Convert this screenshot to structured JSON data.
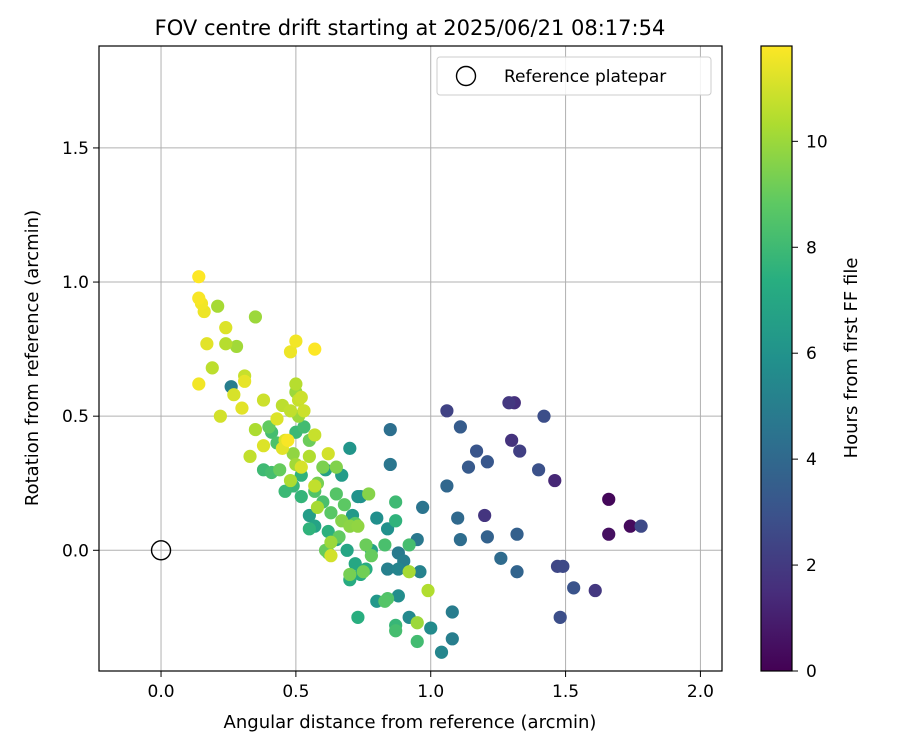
{
  "chart_data": {
    "type": "scatter",
    "title": "FOV centre drift starting at 2025/06/21 08:17:54",
    "xlabel": "Angular distance from reference (arcmin)",
    "ylabel": "Rotation from reference (arcmin)",
    "xlim": [
      -0.23,
      2.08
    ],
    "ylim": [
      -0.45,
      1.88
    ],
    "xticks": [
      0.0,
      0.5,
      1.0,
      1.5,
      2.0
    ],
    "xtick_labels": [
      "0.0",
      "0.5",
      "1.0",
      "1.5",
      "2.0"
    ],
    "yticks": [
      0.0,
      0.5,
      1.0,
      1.5
    ],
    "ytick_labels": [
      "0.0",
      "0.5",
      "1.0",
      "1.5"
    ],
    "grid": true,
    "legend": {
      "position": "top-right",
      "entries": [
        {
          "label": "Reference platepar",
          "marker": "open-circle"
        }
      ]
    },
    "reference_point": {
      "x": 0.0,
      "y": 0.0
    },
    "colorbar": {
      "label": "Hours from first FF file",
      "colormap": "viridis",
      "range": [
        0,
        11.8
      ],
      "ticks": [
        0,
        2,
        4,
        6,
        8,
        10
      ],
      "tick_labels": [
        "0",
        "2",
        "4",
        "6",
        "8",
        "10"
      ]
    },
    "points": [
      {
        "x": 1.66,
        "y": 0.19,
        "c": 0.2
      },
      {
        "x": 1.74,
        "y": 0.09,
        "c": 0.3
      },
      {
        "x": 1.66,
        "y": 0.06,
        "c": 0.5
      },
      {
        "x": 1.78,
        "y": 0.09,
        "c": 2.6
      },
      {
        "x": 1.46,
        "y": 0.26,
        "c": 1.3
      },
      {
        "x": 1.31,
        "y": 0.55,
        "c": 1.6
      },
      {
        "x": 1.29,
        "y": 0.55,
        "c": 1.9
      },
      {
        "x": 1.3,
        "y": 0.41,
        "c": 1.7
      },
      {
        "x": 1.33,
        "y": 0.37,
        "c": 2.2
      },
      {
        "x": 1.2,
        "y": 0.13,
        "c": 1.8
      },
      {
        "x": 1.61,
        "y": -0.15,
        "c": 1.9
      },
      {
        "x": 1.47,
        "y": -0.06,
        "c": 2.5
      },
      {
        "x": 1.49,
        "y": -0.06,
        "c": 2.6
      },
      {
        "x": 1.53,
        "y": -0.14,
        "c": 3.0
      },
      {
        "x": 1.48,
        "y": -0.25,
        "c": 2.8
      },
      {
        "x": 1.42,
        "y": 0.5,
        "c": 2.8
      },
      {
        "x": 1.4,
        "y": 0.3,
        "c": 2.9
      },
      {
        "x": 1.06,
        "y": 0.52,
        "c": 2.3
      },
      {
        "x": 1.17,
        "y": 0.37,
        "c": 3.1
      },
      {
        "x": 1.21,
        "y": 0.33,
        "c": 3.2
      },
      {
        "x": 1.14,
        "y": 0.31,
        "c": 3.3
      },
      {
        "x": 1.11,
        "y": 0.46,
        "c": 3.4
      },
      {
        "x": 1.32,
        "y": 0.06,
        "c": 3.6
      },
      {
        "x": 1.32,
        "y": -0.08,
        "c": 3.8
      },
      {
        "x": 1.26,
        "y": -0.03,
        "c": 4.1
      },
      {
        "x": 1.21,
        "y": 0.05,
        "c": 3.7
      },
      {
        "x": 1.06,
        "y": 0.24,
        "c": 3.9
      },
      {
        "x": 1.1,
        "y": 0.12,
        "c": 4.0
      },
      {
        "x": 1.11,
        "y": 0.04,
        "c": 4.2
      },
      {
        "x": 0.85,
        "y": 0.45,
        "c": 4.3
      },
      {
        "x": 0.85,
        "y": 0.32,
        "c": 4.6
      },
      {
        "x": 0.97,
        "y": 0.16,
        "c": 4.5
      },
      {
        "x": 0.95,
        "y": 0.04,
        "c": 4.7
      },
      {
        "x": 0.88,
        "y": -0.01,
        "c": 4.8
      },
      {
        "x": 0.9,
        "y": -0.04,
        "c": 5.0
      },
      {
        "x": 0.96,
        "y": -0.08,
        "c": 5.2
      },
      {
        "x": 0.84,
        "y": -0.07,
        "c": 5.1
      },
      {
        "x": 0.88,
        "y": -0.07,
        "c": 5.3
      },
      {
        "x": 1.08,
        "y": -0.23,
        "c": 4.9
      },
      {
        "x": 1.08,
        "y": -0.33,
        "c": 5.0
      },
      {
        "x": 1.04,
        "y": -0.38,
        "c": 5.4
      },
      {
        "x": 1.0,
        "y": -0.29,
        "c": 5.6
      },
      {
        "x": 0.92,
        "y": -0.25,
        "c": 5.5
      },
      {
        "x": 0.88,
        "y": -0.17,
        "c": 5.7
      },
      {
        "x": 0.8,
        "y": 0.12,
        "c": 5.8
      },
      {
        "x": 0.84,
        "y": 0.08,
        "c": 5.9
      },
      {
        "x": 0.8,
        "y": -0.19,
        "c": 6.2
      },
      {
        "x": 0.74,
        "y": 0.2,
        "c": 5.9
      },
      {
        "x": 0.7,
        "y": 0.38,
        "c": 6.1
      },
      {
        "x": 0.73,
        "y": 0.2,
        "c": 6.0
      },
      {
        "x": 0.71,
        "y": 0.13,
        "c": 6.3
      },
      {
        "x": 0.67,
        "y": 0.28,
        "c": 6.4
      },
      {
        "x": 0.61,
        "y": 0.3,
        "c": 6.6
      },
      {
        "x": 0.26,
        "y": 0.61,
        "c": 5.0
      },
      {
        "x": 0.55,
        "y": 0.13,
        "c": 6.5
      },
      {
        "x": 0.57,
        "y": 0.09,
        "c": 6.8
      },
      {
        "x": 0.65,
        "y": 0.04,
        "c": 6.7
      },
      {
        "x": 0.69,
        "y": 0.0,
        "c": 6.9
      },
      {
        "x": 0.72,
        "y": -0.05,
        "c": 7.0
      },
      {
        "x": 0.74,
        "y": -0.09,
        "c": 7.1
      },
      {
        "x": 0.7,
        "y": -0.11,
        "c": 7.2
      },
      {
        "x": 0.78,
        "y": 0.0,
        "c": 6.8
      },
      {
        "x": 0.76,
        "y": -0.07,
        "c": 7.3
      },
      {
        "x": 0.73,
        "y": -0.25,
        "c": 7.4
      },
      {
        "x": 0.62,
        "y": 0.07,
        "c": 7.5
      },
      {
        "x": 0.55,
        "y": 0.08,
        "c": 7.6
      },
      {
        "x": 0.52,
        "y": 0.2,
        "c": 7.7
      },
      {
        "x": 0.49,
        "y": 0.24,
        "c": 7.8
      },
      {
        "x": 0.46,
        "y": 0.22,
        "c": 7.9
      },
      {
        "x": 0.52,
        "y": 0.28,
        "c": 7.6
      },
      {
        "x": 0.5,
        "y": 0.44,
        "c": 7.9
      },
      {
        "x": 0.53,
        "y": 0.46,
        "c": 8.1
      },
      {
        "x": 0.41,
        "y": 0.44,
        "c": 8.2
      },
      {
        "x": 0.43,
        "y": 0.4,
        "c": 8.4
      },
      {
        "x": 0.38,
        "y": 0.3,
        "c": 8.0
      },
      {
        "x": 0.41,
        "y": 0.29,
        "c": 8.2
      },
      {
        "x": 0.87,
        "y": 0.11,
        "c": 7.6
      },
      {
        "x": 0.87,
        "y": 0.18,
        "c": 8.0
      },
      {
        "x": 0.92,
        "y": 0.02,
        "c": 8.2
      },
      {
        "x": 0.83,
        "y": 0.02,
        "c": 8.3
      },
      {
        "x": 0.87,
        "y": -0.28,
        "c": 7.8
      },
      {
        "x": 0.87,
        "y": -0.3,
        "c": 8.2
      },
      {
        "x": 0.95,
        "y": -0.34,
        "c": 8.1
      },
      {
        "x": 0.84,
        "y": -0.18,
        "c": 8.5
      },
      {
        "x": 0.83,
        "y": -0.19,
        "c": 8.6
      },
      {
        "x": 0.6,
        "y": 0.18,
        "c": 8.3
      },
      {
        "x": 0.57,
        "y": 0.22,
        "c": 8.5
      },
      {
        "x": 0.65,
        "y": 0.21,
        "c": 8.6
      },
      {
        "x": 0.63,
        "y": 0.14,
        "c": 8.7
      },
      {
        "x": 0.68,
        "y": 0.17,
        "c": 8.8
      },
      {
        "x": 0.72,
        "y": 0.1,
        "c": 8.7
      },
      {
        "x": 0.66,
        "y": 0.05,
        "c": 8.9
      },
      {
        "x": 0.61,
        "y": 0.0,
        "c": 9.0
      },
      {
        "x": 0.62,
        "y": -0.01,
        "c": 8.8
      },
      {
        "x": 0.76,
        "y": 0.02,
        "c": 9.1
      },
      {
        "x": 0.78,
        "y": -0.02,
        "c": 9.0
      },
      {
        "x": 0.75,
        "y": -0.08,
        "c": 9.2
      },
      {
        "x": 0.7,
        "y": -0.09,
        "c": 9.3
      },
      {
        "x": 0.4,
        "y": 0.46,
        "c": 8.9
      },
      {
        "x": 0.44,
        "y": 0.3,
        "c": 9.0
      },
      {
        "x": 0.55,
        "y": 0.41,
        "c": 9.1
      },
      {
        "x": 0.58,
        "y": 0.25,
        "c": 9.3
      },
      {
        "x": 0.6,
        "y": 0.31,
        "c": 9.4
      },
      {
        "x": 0.65,
        "y": 0.31,
        "c": 9.5
      },
      {
        "x": 0.67,
        "y": 0.11,
        "c": 9.6
      },
      {
        "x": 0.7,
        "y": 0.09,
        "c": 9.7
      },
      {
        "x": 0.77,
        "y": 0.21,
        "c": 9.6
      },
      {
        "x": 0.73,
        "y": 0.09,
        "c": 9.8
      },
      {
        "x": 0.63,
        "y": 0.03,
        "c": 10.0
      },
      {
        "x": 0.58,
        "y": 0.16,
        "c": 10.2
      },
      {
        "x": 0.49,
        "y": 0.36,
        "c": 9.8
      },
      {
        "x": 0.5,
        "y": 0.32,
        "c": 10.1
      },
      {
        "x": 0.48,
        "y": 0.26,
        "c": 10.3
      },
      {
        "x": 0.55,
        "y": 0.35,
        "c": 10.4
      },
      {
        "x": 0.51,
        "y": 0.5,
        "c": 10.0
      },
      {
        "x": 0.5,
        "y": 0.59,
        "c": 10.0
      },
      {
        "x": 0.5,
        "y": 0.62,
        "c": 10.5
      },
      {
        "x": 0.45,
        "y": 0.54,
        "c": 10.6
      },
      {
        "x": 0.48,
        "y": 0.52,
        "c": 10.7
      },
      {
        "x": 0.51,
        "y": 0.56,
        "c": 10.8
      },
      {
        "x": 0.52,
        "y": 0.57,
        "c": 10.9
      },
      {
        "x": 0.53,
        "y": 0.52,
        "c": 10.9
      },
      {
        "x": 0.57,
        "y": 0.43,
        "c": 10.8
      },
      {
        "x": 0.62,
        "y": 0.36,
        "c": 11.0
      },
      {
        "x": 0.52,
        "y": 0.31,
        "c": 11.1
      },
      {
        "x": 0.46,
        "y": 0.41,
        "c": 11.2
      },
      {
        "x": 0.45,
        "y": 0.38,
        "c": 11.3
      },
      {
        "x": 0.43,
        "y": 0.49,
        "c": 11.2
      },
      {
        "x": 0.95,
        "y": -0.27,
        "c": 10.0
      },
      {
        "x": 0.99,
        "y": -0.15,
        "c": 10.4
      },
      {
        "x": 0.92,
        "y": -0.08,
        "c": 10.2
      },
      {
        "x": 0.63,
        "y": -0.02,
        "c": 11.0
      },
      {
        "x": 0.57,
        "y": 0.24,
        "c": 10.7
      },
      {
        "x": 0.35,
        "y": 0.87,
        "c": 10.0
      },
      {
        "x": 0.21,
        "y": 0.91,
        "c": 10.2
      },
      {
        "x": 0.24,
        "y": 0.77,
        "c": 10.5
      },
      {
        "x": 0.28,
        "y": 0.76,
        "c": 10.1
      },
      {
        "x": 0.19,
        "y": 0.68,
        "c": 10.6
      },
      {
        "x": 0.22,
        "y": 0.5,
        "c": 11.0
      },
      {
        "x": 0.31,
        "y": 0.65,
        "c": 10.8
      },
      {
        "x": 0.35,
        "y": 0.45,
        "c": 10.3
      },
      {
        "x": 0.38,
        "y": 0.56,
        "c": 10.9
      },
      {
        "x": 0.33,
        "y": 0.35,
        "c": 10.7
      },
      {
        "x": 0.38,
        "y": 0.39,
        "c": 11.2
      },
      {
        "x": 0.3,
        "y": 0.53,
        "c": 11.3
      },
      {
        "x": 0.27,
        "y": 0.58,
        "c": 11.1
      },
      {
        "x": 0.31,
        "y": 0.63,
        "c": 11.4
      },
      {
        "x": 0.24,
        "y": 0.83,
        "c": 11.2
      },
      {
        "x": 0.17,
        "y": 0.77,
        "c": 11.3
      },
      {
        "x": 0.16,
        "y": 0.89,
        "c": 11.5
      },
      {
        "x": 0.15,
        "y": 0.92,
        "c": 11.6
      },
      {
        "x": 0.14,
        "y": 0.94,
        "c": 11.7
      },
      {
        "x": 0.14,
        "y": 1.02,
        "c": 11.8
      },
      {
        "x": 0.14,
        "y": 0.62,
        "c": 11.6
      },
      {
        "x": 0.48,
        "y": 0.74,
        "c": 11.5
      },
      {
        "x": 0.5,
        "y": 0.78,
        "c": 11.6
      },
      {
        "x": 0.57,
        "y": 0.75,
        "c": 11.8
      },
      {
        "x": 0.47,
        "y": 0.41,
        "c": 11.7
      }
    ]
  }
}
